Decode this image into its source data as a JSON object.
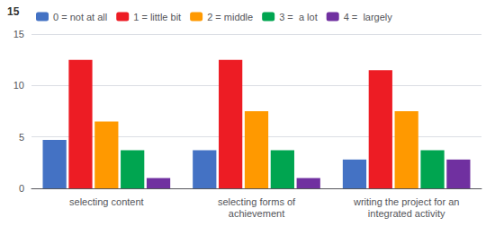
{
  "chart_data": {
    "type": "bar",
    "categories": [
      "selecting content",
      "selecting forms of\nachievement",
      "writing the project for an\nintegrated activity"
    ],
    "series": [
      {
        "name": "0 = not at all",
        "color": "#4472c4",
        "values": [
          4.7,
          3.7,
          2.8
        ]
      },
      {
        "name": "1 = little bit",
        "color": "#ed1c24",
        "values": [
          12.5,
          12.5,
          11.5
        ]
      },
      {
        "name": "2 = middle",
        "color": "#ff9900",
        "values": [
          6.5,
          7.5,
          7.5
        ]
      },
      {
        "name": "3 =  a lot",
        "color": "#00a550",
        "values": [
          3.7,
          3.7,
          3.7
        ]
      },
      {
        "name": "4 =  largely",
        "color": "#7030a0",
        "values": [
          1.0,
          1.0,
          2.8
        ]
      }
    ],
    "ylim": [
      0,
      15
    ],
    "yticks": [
      0,
      5,
      10,
      15
    ],
    "grid": true,
    "legend": "top",
    "annotations": [
      "15"
    ]
  }
}
